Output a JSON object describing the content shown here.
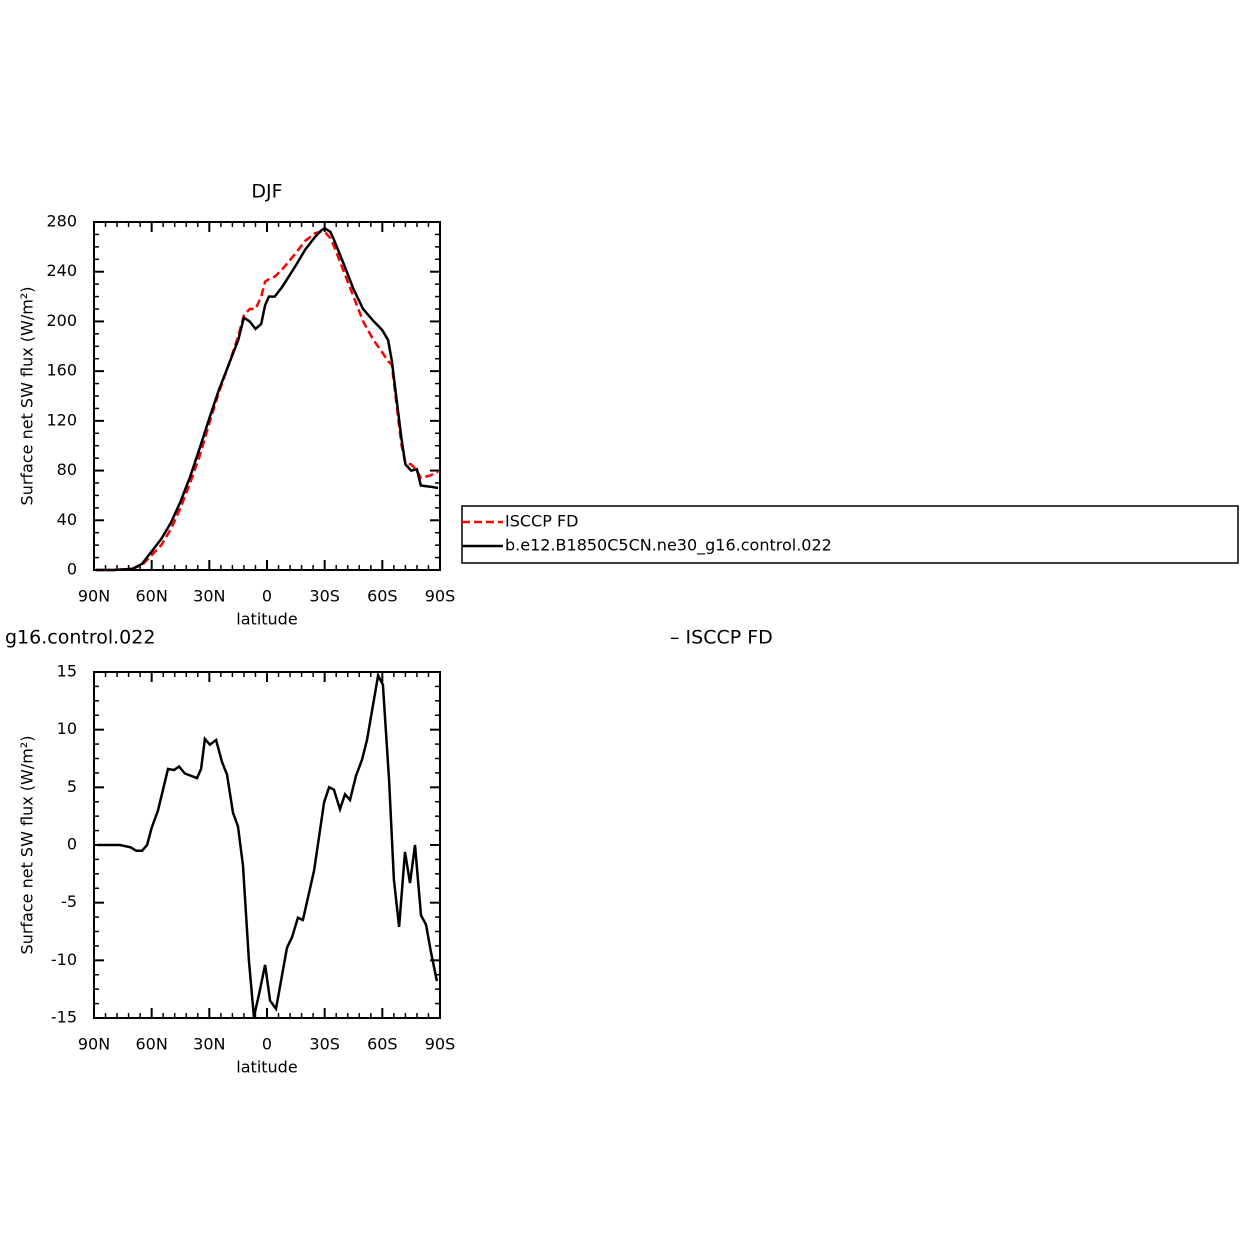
{
  "chart_data": [
    {
      "type": "line",
      "title": "DJF",
      "xlabel": "latitude",
      "ylabel": "Surface net SW flux (W/m²)",
      "x": [
        89,
        80,
        70,
        65,
        60,
        55,
        50,
        45,
        40,
        35,
        30,
        25,
        20,
        15,
        12,
        9,
        6,
        3,
        1,
        -1,
        -4,
        -8,
        -15,
        -20,
        -25,
        -28,
        -30,
        -33,
        -35,
        -40,
        -45,
        -50,
        -55,
        -60,
        -63,
        -65,
        -68,
        -70,
        -72,
        -75,
        -78,
        -80,
        -85,
        -89
      ],
      "series": [
        {
          "name": "ISCCP FD",
          "color": "#ff0000",
          "dash": true,
          "values": [
            0,
            0,
            1,
            4,
            12,
            20,
            33,
            50,
            70,
            92,
            118,
            143,
            165,
            188,
            205,
            210,
            210,
            220,
            232,
            234,
            236,
            242,
            255,
            265,
            271,
            272,
            272,
            267,
            260,
            240,
            220,
            200,
            186,
            175,
            168,
            165,
            125,
            100,
            86,
            85,
            80,
            74,
            76,
            79
          ]
        },
        {
          "name": "b.e12.B1850C5CN.ne30_g16.control.022",
          "color": "#000000",
          "dash": false,
          "values": [
            0,
            0,
            1,
            5,
            15,
            25,
            38,
            55,
            75,
            98,
            122,
            145,
            165,
            185,
            203,
            200,
            194,
            198,
            213,
            220,
            220,
            228,
            245,
            258,
            268,
            273,
            275,
            272,
            265,
            246,
            226,
            210,
            201,
            193,
            185,
            168,
            130,
            105,
            85,
            80,
            81,
            68,
            67,
            66
          ]
        }
      ],
      "xlim": [
        90,
        -90
      ],
      "xticks": [
        {
          "value": 90,
          "label": "90N"
        },
        {
          "value": 60,
          "label": "60N"
        },
        {
          "value": 30,
          "label": "30N"
        },
        0,
        {
          "value": -30,
          "label": "30S"
        },
        {
          "value": -60,
          "label": "60S"
        },
        {
          "value": -90,
          "label": "90S"
        }
      ],
      "ylim": [
        0,
        280
      ],
      "yticks": [
        0,
        40,
        80,
        120,
        160,
        200,
        240,
        280
      ],
      "legend": "right"
    },
    {
      "type": "line",
      "title_left": "g16.control.022",
      "title_right": "– ISCCP FD",
      "xlabel": "latitude",
      "ylabel": "Surface net SW flux (W/m²)",
      "x": [
        88,
        76.5,
        71,
        68,
        65,
        62.4,
        60,
        56.7,
        51.5,
        48.4,
        45.8,
        42.7,
        36.4,
        34.3,
        32.3,
        29.7,
        26.5,
        23.4,
        20.8,
        17.7,
        15.1,
        12.5,
        9.4,
        6.8,
        4.2,
        1,
        -1.6,
        -4.7,
        -10.4,
        -13,
        -16.1,
        -18.7,
        -24.5,
        -29.7,
        -32.3,
        -34.8,
        -38,
        -40.6,
        -43.2,
        -46.3,
        -49.4,
        -52,
        -57.8,
        -60.3,
        -63.5,
        -66,
        -68.7,
        -71.8,
        -74.4,
        -77,
        -80.1,
        -82.7,
        -85.3,
        -88.4
      ],
      "values": [
        0,
        0,
        -0.2,
        -0.5,
        -0.5,
        0,
        1.5,
        3,
        6.6,
        6.5,
        6.8,
        6.2,
        5.8,
        6.6,
        9.2,
        8.7,
        9.1,
        7.2,
        6.1,
        2.8,
        1.6,
        -1.8,
        -10,
        -14.9,
        -13,
        -10.4,
        -13.5,
        -14.2,
        -8.9,
        -8,
        -6.3,
        -6.5,
        -2.2,
        3.7,
        5,
        4.8,
        3.1,
        4.4,
        3.9,
        6,
        7.4,
        9.1,
        14.7,
        13.9,
        5.6,
        -3,
        -7.1,
        -0.6,
        -3.3,
        0,
        -6.1,
        -6.9,
        -9.3,
        -11.8
      ],
      "color": "#000000",
      "xlim": [
        90,
        -90
      ],
      "xticks": [
        {
          "value": 90,
          "label": "90N"
        },
        {
          "value": 60,
          "label": "60N"
        },
        {
          "value": 30,
          "label": "30N"
        },
        0,
        {
          "value": -30,
          "label": "30S"
        },
        {
          "value": -60,
          "label": "60S"
        },
        {
          "value": -90,
          "label": "90S"
        }
      ],
      "ylim": [
        -15,
        15
      ],
      "yticks": [
        -15,
        -10,
        -5,
        0,
        5,
        10,
        15
      ]
    }
  ]
}
